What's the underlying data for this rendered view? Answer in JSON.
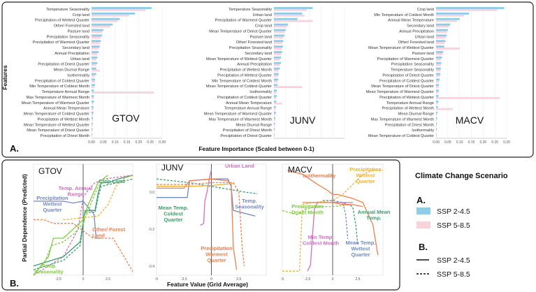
{
  "chart_data": [
    {
      "type": "bar",
      "orientation": "horizontal",
      "panel_label": "A.",
      "xlabel": "Feature Importance (Scaled between 0-1)",
      "ylabel": "Features",
      "series_colors": {
        "ssp245": "#8ecde8",
        "ssp585": "#f9d3dc"
      },
      "panels": [
        {
          "title": "GTOV",
          "xlim": [
            0,
            0.3
          ],
          "ticks": [
            "0.00",
            "0.05",
            "0.10",
            "0.15",
            "0.20",
            "0.25",
            "0.30"
          ],
          "features": [
            "Temperature Seasonality",
            "Crop land",
            "Precipitation of Wettest Quarter",
            "Other/ Forested land",
            "Pasture land",
            "Precipitation Seasonality",
            "Precipitation of Warmest Quarter",
            "Secondary land",
            "Annual Precipitation",
            "Urban land",
            "Precipitation of Driest Quarter",
            "Mean Diurnal Range",
            "Isothermality",
            "Precipitation of Coldest Quarter",
            "Min Temperature of Coldest Month",
            "Temperature Annual Range",
            "Max Temperature of Warmest Month",
            "Mean Temperature of Warmest Quarter",
            "Annual Mean Temperature",
            "Mean Temperature of Coldest Quarter",
            "Precipitation of Wettest Month",
            "Mean Temperature of Wettest Quarter",
            "Mean Temperature of Driest Quarter",
            "Precipitation of Driest Month"
          ],
          "ssp245": [
            0.255,
            0.185,
            0.12,
            0.09,
            0.05,
            0.045,
            0.04,
            0.035,
            0.03,
            0.025,
            0.025,
            0.02,
            0.02,
            0.015,
            0.015,
            0.01,
            0.01,
            0.01,
            0.008,
            0.008,
            0.006,
            0.005,
            0.004,
            0.003
          ],
          "ssp585": [
            0.23,
            0.16,
            0.11,
            0.08,
            0.045,
            0.04,
            0.035,
            0.03,
            0.025,
            0.02,
            0.02,
            0.035,
            0.015,
            0.015,
            0.012,
            0.265,
            0.01,
            0.008,
            0.008,
            0.006,
            0.005,
            0.004,
            0.003,
            0.002
          ]
        },
        {
          "title": "JUNV",
          "xlim": [
            0,
            0.3
          ],
          "ticks": [],
          "features": [
            "Temperature Seasonality",
            "Urban land",
            "Precipitation of Warmest Quarter",
            "Crop land",
            "Mean Temperature of Driest Quarter",
            "Pasture land",
            "Other/ Forested land",
            "Precipitation Seasonality",
            "Secondary land",
            "Mean Temperature of Wettest Quarter",
            "Annual Precipitation",
            "Precipitation of Wettest Month",
            "Precipitation of Wettest Quarter",
            "Min Temperature of Coldest Month",
            "Mean Temperature of Coldest Quarter",
            "Isothermality",
            "Precipitation of Coldest Quarter",
            "Annual Mean Temperature",
            "Temperature Annual Range",
            "Mean Temperature of Warmest Quarter",
            "Max Temperature of Warmest Month",
            "Mean Diurnal Range",
            "Precipitation of Driest Month",
            "Precipitation of Driest Quarter"
          ],
          "ssp245": [
            0.165,
            0.12,
            0.1,
            0.06,
            0.05,
            0.045,
            0.04,
            0.038,
            0.035,
            0.03,
            0.03,
            0.025,
            0.02,
            0.018,
            0.015,
            0.012,
            0.012,
            0.01,
            0.008,
            0.008,
            0.006,
            0.005,
            0.004,
            0.003
          ],
          "ssp585": [
            0.14,
            0.13,
            0.165,
            0.055,
            0.045,
            0.04,
            0.035,
            0.033,
            0.03,
            0.025,
            0.025,
            0.02,
            0.018,
            0.015,
            0.12,
            0.01,
            0.01,
            0.035,
            0.007,
            0.007,
            0.005,
            0.004,
            0.003,
            0.002
          ]
        },
        {
          "title": "MACV",
          "xlim": [
            0,
            0.3
          ],
          "ticks": [
            "0.00",
            "0.05",
            "0.10",
            "0.15",
            "0.20",
            "0.25",
            "0.30"
          ],
          "features": [
            "Crop land",
            "Min Temperature of Coldest Month",
            "Annual Mean Temperature",
            "Secondary land",
            "Annual Precipitation",
            "Urban land",
            "Other/ Forested land",
            "Mean Temperature of Wettest Quarter",
            "Pasture land",
            "Precipitation of Warmest Quarter",
            "Precipitation Seasonality",
            "Temperature Seasonality",
            "Precipitation of Driest Quarter",
            "Precipitation of Coldest Quarter",
            "Mean Temperature of Driest Quarter",
            "Mean Temperature of Warmest Quarter",
            "Precipitation of Wettest Quarter",
            "Temperature Annual Range",
            "Precipitation of Wettest Month",
            "Mean Diurnal Range",
            "Max Temperature of Warmest Month",
            "Precipitation of Driest Month",
            "Isothermality",
            "Mean Temperature of Coldest Quarter"
          ],
          "ssp245": [
            0.29,
            0.14,
            0.1,
            0.06,
            0.05,
            0.045,
            0.04,
            0.035,
            0.03,
            0.025,
            0.022,
            0.02,
            0.018,
            0.015,
            0.012,
            0.012,
            0.01,
            0.01,
            0.008,
            0.006,
            0.005,
            0.004,
            0.003,
            0.002
          ],
          "ssp585": [
            0.26,
            0.12,
            0.09,
            0.055,
            0.045,
            0.04,
            0.035,
            0.1,
            0.028,
            0.022,
            0.02,
            0.018,
            0.016,
            0.012,
            0.01,
            0.01,
            0.27,
            0.008,
            0.07,
            0.005,
            0.004,
            0.003,
            0.002,
            0.002
          ]
        }
      ]
    },
    {
      "type": "line",
      "panel_label": "B.",
      "xlabel": "Feature Value (Grid Average)",
      "ylabel": "Partial Dependence (Predicted)",
      "panels": [
        {
          "title": "GTOV",
          "xlim": [
            -5,
            5
          ],
          "ylim": [
            -0.3,
            0.3
          ],
          "xticks": [
            "-2.5",
            "0",
            "2.5"
          ],
          "yticks": [],
          "series": [
            {
              "label": "Temp. Annual Range",
              "color": "#d36fc0",
              "style": "dashed",
              "x": [
                -5,
                -2,
                -0.5,
                0,
                0.5,
                1.2,
                2.2,
                3.5,
                5
              ],
              "y": [
                -0.3,
                -0.2,
                -0.05,
                0.12,
                0.16,
                0.2,
                0.22,
                0.23,
                0.24
              ]
            },
            {
              "label": "Crop Land",
              "color": "#3a9e6e",
              "style": "solid",
              "x": [
                -5,
                -2,
                -0.3,
                0.2,
                1.2,
                1.5,
                1.8,
                2.6,
                3.5,
                5
              ],
              "y": [
                -0.25,
                -0.2,
                -0.12,
                0.05,
                0.05,
                0.14,
                0.2,
                0.2,
                0.22,
                0.24
              ]
            },
            {
              "label": "Crop Land",
              "color": "#3a9e6e",
              "style": "dashed",
              "x": [
                -5,
                -2,
                -0.3,
                0.2,
                1.2,
                1.5,
                1.8,
                2.6,
                3.5,
                5
              ],
              "y": [
                -0.27,
                -0.22,
                -0.14,
                0.04,
                0.04,
                0.12,
                0.18,
                0.19,
                0.2,
                0.22
              ]
            },
            {
              "label": "Precipitation Wettest Quarter",
              "color": "#7389c4",
              "style": "solid",
              "x": [
                -5,
                -2,
                -1,
                0,
                0.6,
                1.1,
                1.3,
                1.8
              ],
              "y": [
                0.1,
                0.1,
                0.09,
                0.1,
                0.06,
                0.03,
                -0.1,
                -0.1
              ]
            },
            {
              "label": "Other/ Forest Land",
              "color": "#f07f4f",
              "style": "dashed",
              "x": [
                -5,
                -4,
                -3,
                -1,
                0,
                1,
                3,
                3.8,
                5
              ],
              "y": [
                0.0,
                0.0,
                -0.02,
                -0.02,
                -0.06,
                -0.1,
                -0.1,
                -0.17,
                -0.28
              ]
            },
            {
              "label": "Temp. Seasonality",
              "color": "#7fcc3f",
              "style": "solid",
              "x": [
                -5,
                -3.5,
                -3,
                -2,
                -1,
                0,
                0.5,
                1.5,
                2.5
              ],
              "y": [
                -0.3,
                -0.2,
                -0.1,
                -0.1,
                -0.05,
                0.0,
                0.08,
                0.2,
                0.24
              ]
            },
            {
              "label": "Temp. Seasonality",
              "color": "#7fcc3f",
              "style": "dashed",
              "x": [
                -5,
                -3.8,
                -3.2,
                -2,
                -1,
                0,
                0.5,
                1.5,
                2.5
              ],
              "y": [
                -0.3,
                -0.22,
                -0.14,
                -0.12,
                -0.08,
                -0.02,
                0.05,
                0.18,
                0.22
              ]
            },
            {
              "label": "",
              "color": "#f2b230",
              "style": "dashed",
              "x": [
                -2,
                0,
                1.5,
                2.5,
                3.3,
                4,
                5
              ],
              "y": [
                0.0,
                0.01,
                0.02,
                0.08,
                0.18,
                0.22,
                0.24
              ]
            }
          ]
        },
        {
          "title": "JUNV",
          "xlim": [
            -5,
            5
          ],
          "ylim": [
            -0.45,
            0.15
          ],
          "xticks": [
            "-5",
            "-2.5",
            "0",
            "2.5"
          ],
          "yticks": [
            "0.0",
            "-0.2",
            "-0.4"
          ],
          "series": [
            {
              "label": "Urban Land",
              "color": "#d36fc0",
              "style": "solid",
              "x": [
                -1,
                -0.7,
                -0.6,
                -0.4,
                -0.2,
                0
              ],
              "y": [
                -0.18,
                -0.17,
                -0.05,
                0.0,
                0.07,
                0.12
              ]
            },
            {
              "label": "Mean Temp. Coldest Quarter",
              "color": "#3a9e6e",
              "style": "dashed",
              "x": [
                -5,
                -2,
                -1,
                0,
                1,
                3,
                4.2
              ],
              "y": [
                0.07,
                0.05,
                0.04,
                0.03,
                0.02,
                0.0,
                -0.01
              ]
            },
            {
              "label": "Temp. Seasonality",
              "color": "#7389c4",
              "style": "solid",
              "x": [
                -5,
                -2.2,
                -2,
                0,
                1.5,
                1.8,
                2,
                4
              ],
              "y": [
                -0.03,
                -0.03,
                0.06,
                0.07,
                0.07,
                0.03,
                -0.1,
                -0.13
              ]
            },
            {
              "label": "Precipitation Warmest Quarter",
              "color": "#f07f4f",
              "style": "solid",
              "x": [
                -5,
                -2.5,
                -2,
                0,
                1.5,
                1.8,
                2,
                2.3
              ],
              "y": [
                0.02,
                0.02,
                0.06,
                0.07,
                0.06,
                0.04,
                -0.3,
                -0.42
              ]
            },
            {
              "label": "Precipitation Warmest Quarter",
              "color": "#f07f4f",
              "style": "dashed",
              "x": [
                -5,
                -2,
                0,
                2,
                2.5,
                2.8,
                3
              ],
              "y": [
                0.04,
                0.04,
                0.05,
                0.05,
                0.0,
                -0.3,
                -0.4
              ]
            },
            {
              "label": "",
              "color": "#f2b230",
              "style": "solid",
              "x": [
                -5,
                -2,
                0,
                1,
                2
              ],
              "y": [
                0.03,
                0.03,
                0.035,
                0.04,
                0.045
              ]
            }
          ]
        },
        {
          "title": "MACV",
          "xlim": [
            -5,
            5
          ],
          "ylim": [
            -0.3,
            0.25
          ],
          "xticks": [
            "-5",
            "-2.5",
            "0",
            "2.5"
          ],
          "yticks": [],
          "series": [
            {
              "label": "Isothermality",
              "color": "#f07f4f",
              "style": "solid",
              "x": [
                -4.5,
                -3,
                -1.5,
                -0.5,
                0,
                0.5,
                2,
                3,
                4,
                4.5
              ],
              "y": [
                0.22,
                0.2,
                0.15,
                0.12,
                0.1,
                0.1,
                0.08,
                0.06,
                -0.05,
                -0.2
              ]
            },
            {
              "label": "Precipitation Wettest Quarter",
              "color": "#f2b230",
              "style": "dashed",
              "x": [
                -5,
                -3.3,
                -3,
                -2,
                0,
                1,
                2,
                3,
                4,
                5
              ],
              "y": [
                -0.28,
                -0.28,
                0.05,
                0.06,
                0.07,
                0.1,
                0.15,
                0.2,
                0.22,
                0.22
              ]
            },
            {
              "label": "Precipitation Driest Month",
              "color": "#7fcc3f",
              "style": "dashed",
              "x": [
                -5,
                -3.5,
                -2.5,
                -1.5,
                0,
                2
              ],
              "y": [
                0.02,
                0.0,
                0.03,
                0.04,
                0.04,
                0.05
              ]
            },
            {
              "label": "Annual Mean Temp.",
              "color": "#3a9e6e",
              "style": "dashed",
              "x": [
                -2,
                0,
                1,
                2,
                2.3,
                2.5
              ],
              "y": [
                0.06,
                0.06,
                0.06,
                0.04,
                -0.05,
                -0.15
              ]
            },
            {
              "label": "Min Temp. Coldest Month",
              "color": "#d36fc0",
              "style": "solid",
              "x": [
                -2.5,
                -2.2,
                -2,
                -1.8,
                -1.5,
                0,
                1,
                2
              ],
              "y": [
                -0.28,
                -0.25,
                -0.1,
                0.03,
                0.06,
                0.06,
                0.06,
                0.06
              ]
            },
            {
              "label": "Mean Temp. Wettest Quarter",
              "color": "#7389c4",
              "style": "dashed",
              "x": [
                -1,
                0,
                1,
                1.3,
                1.5
              ],
              "y": [
                0.07,
                0.07,
                0.06,
                0.0,
                -0.12
              ]
            },
            {
              "label": "",
              "color": "#f07f4f",
              "style": "solid",
              "x": [
                -3,
                -1,
                0,
                0.5,
                1,
                2,
                3
              ],
              "y": [
                0.06,
                0.06,
                0.06,
                0.055,
                0.05,
                0.05,
                0.04
              ]
            }
          ]
        }
      ]
    }
  ],
  "legend": {
    "title": "Climate Change Scenario",
    "section_a": "A.",
    "ssp245": "SSP 2-4.5",
    "ssp585": "SSP 5-8.5",
    "section_b": "B.",
    "solid": "SSP 2-4.5",
    "dashed": "SSP 5-8.5"
  }
}
